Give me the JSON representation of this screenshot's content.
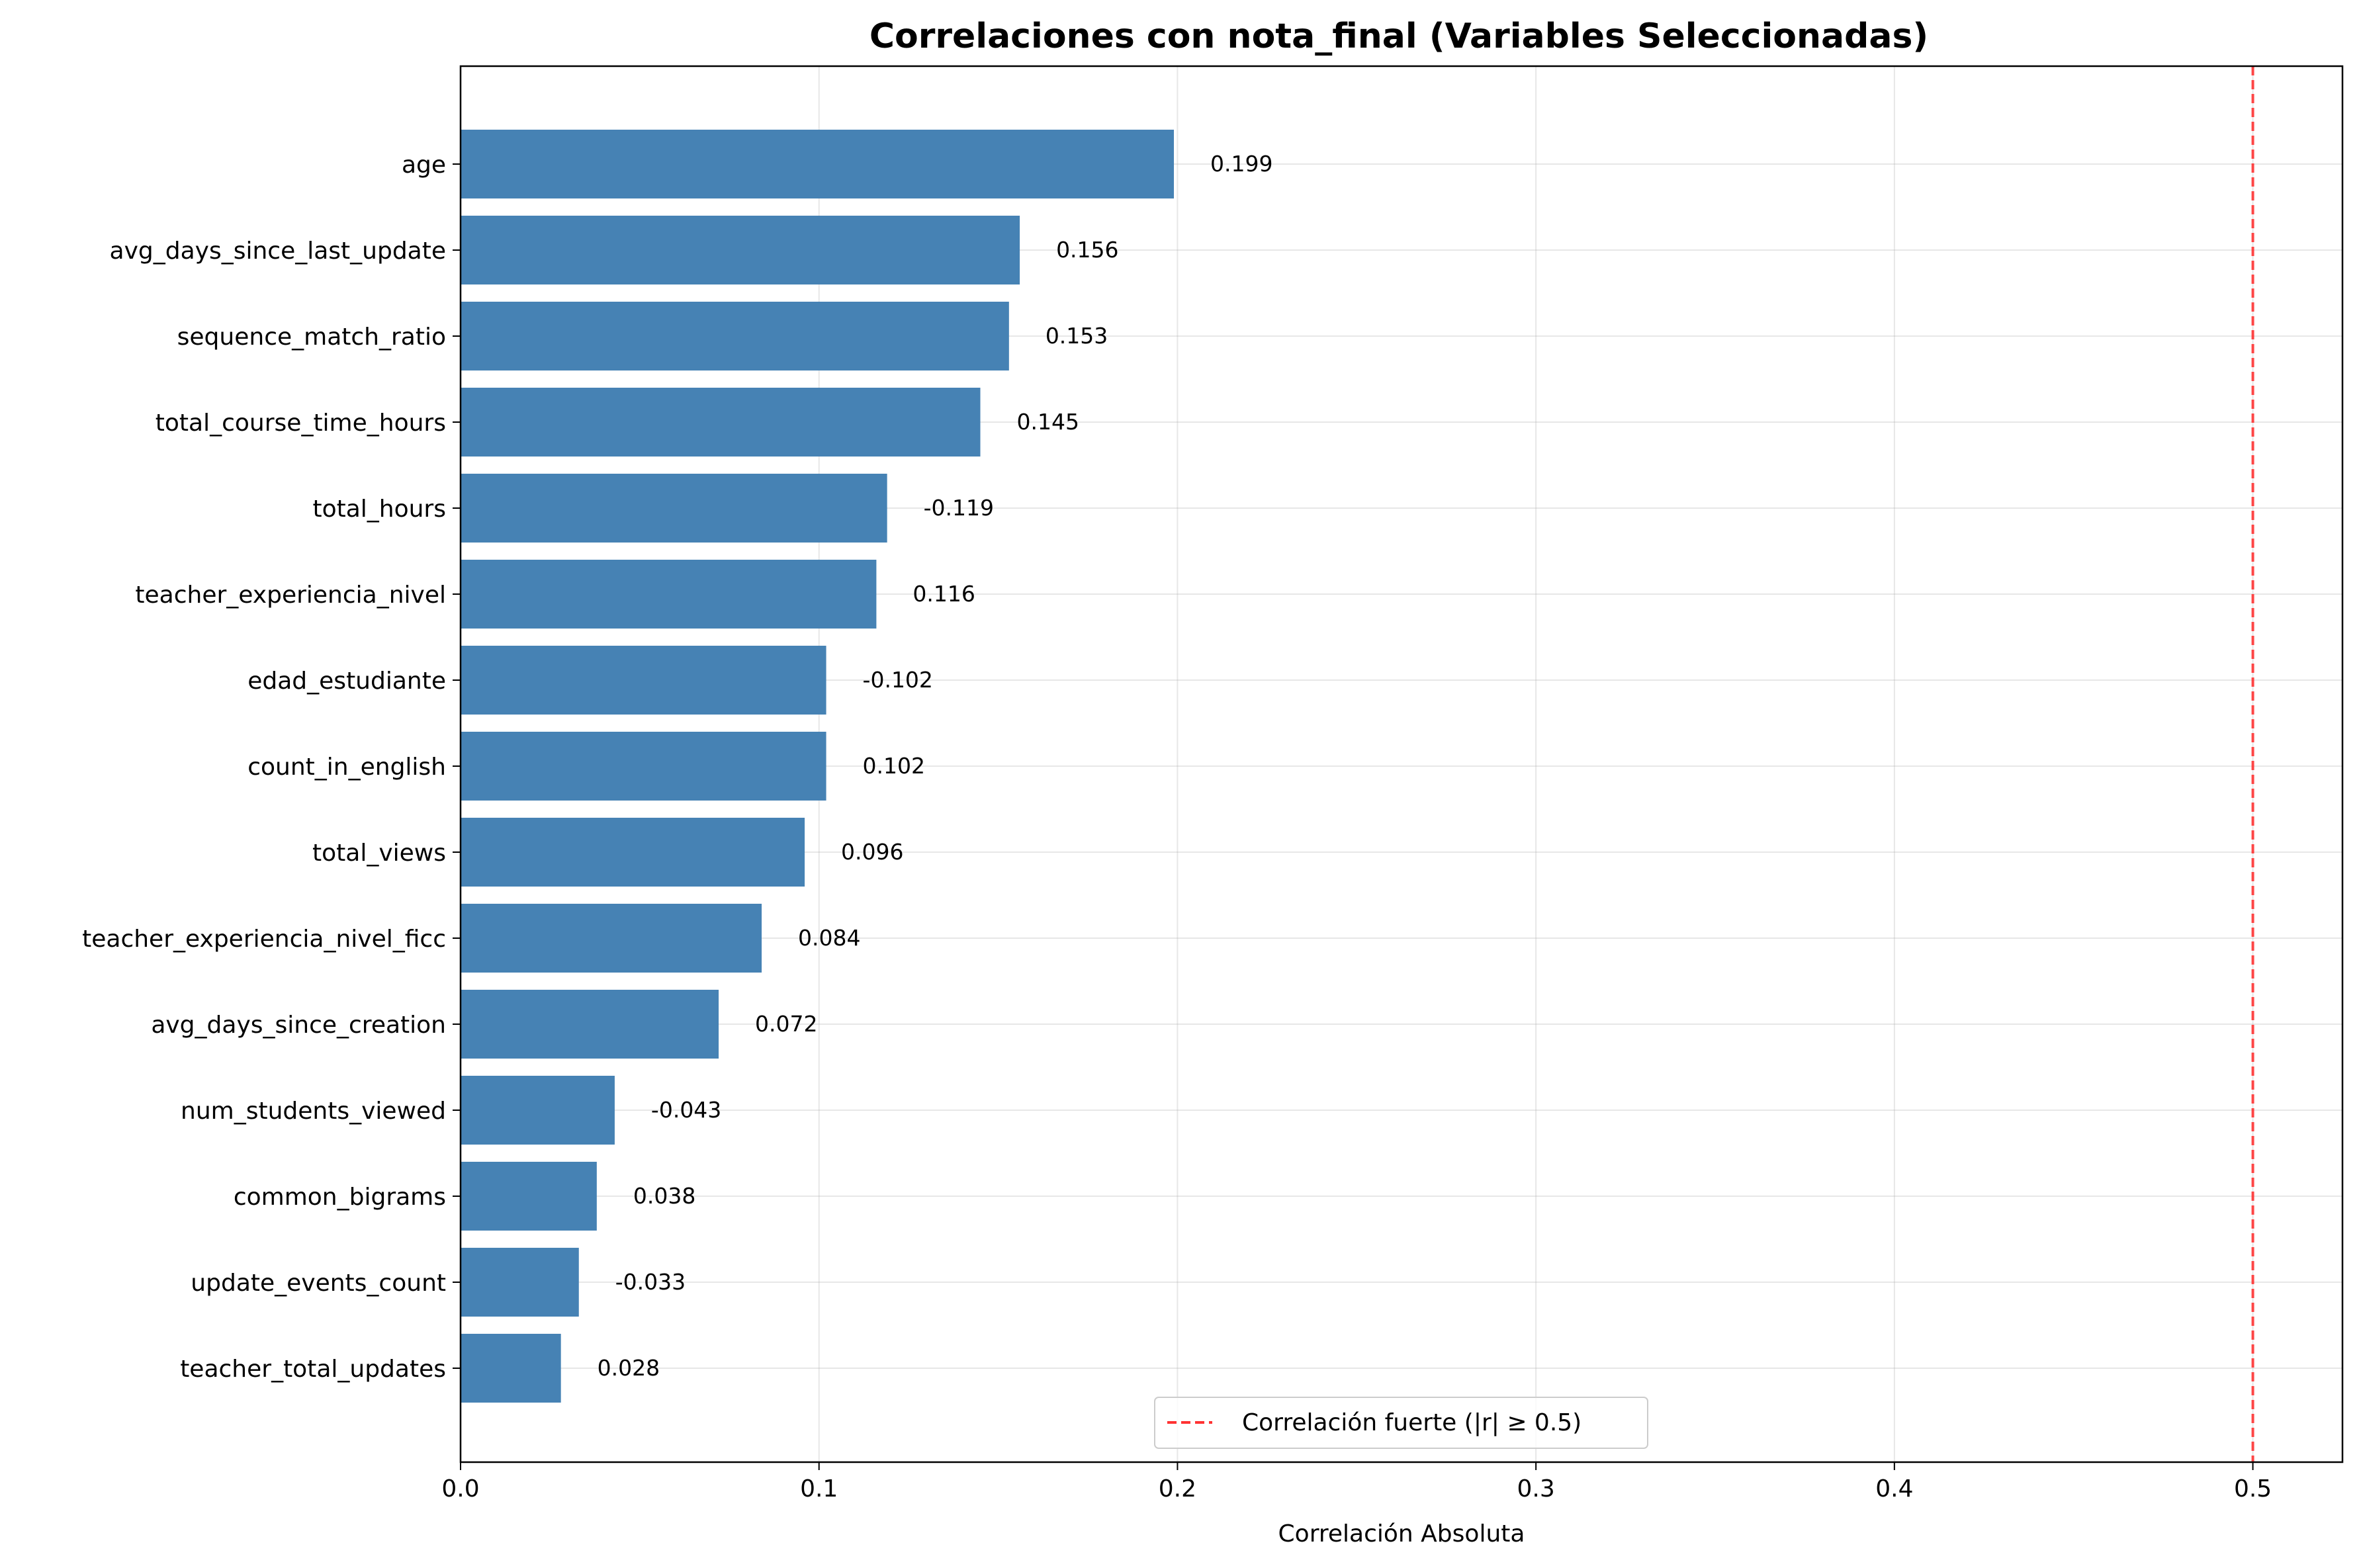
{
  "chart_data": {
    "type": "bar",
    "orientation": "horizontal",
    "title": "Correlaciones con nota_final (Variables Seleccionadas)",
    "xlabel": "Correlación Absoluta",
    "ylabel": "",
    "xlim": [
      0,
      0.525
    ],
    "xticks": [
      "0.0",
      "0.1",
      "0.2",
      "0.3",
      "0.4",
      "0.5"
    ],
    "xtick_values": [
      0,
      0.1,
      0.2,
      0.3,
      0.4,
      0.5
    ],
    "grid": true,
    "bar_color": "#4682B4",
    "categories": [
      "age",
      "avg_days_since_last_update",
      "sequence_match_ratio",
      "total_course_time_hours",
      "total_hours",
      "teacher_experiencia_nivel",
      "edad_estudiante",
      "count_in_english",
      "total_views",
      "teacher_experiencia_nivel_ficc",
      "avg_days_since_creation",
      "num_students_viewed",
      "common_bigrams",
      "update_events_count",
      "teacher_total_updates"
    ],
    "values": [
      0.199,
      0.156,
      0.153,
      0.145,
      0.119,
      0.116,
      0.102,
      0.102,
      0.096,
      0.084,
      0.072,
      0.043,
      0.038,
      0.033,
      0.028
    ],
    "data_labels": [
      "0.199",
      "0.156",
      "0.153",
      "0.145",
      "-0.119",
      "0.116",
      "-0.102",
      "0.102",
      "0.096",
      "0.084",
      "0.072",
      "-0.043",
      "0.038",
      "-0.033",
      "0.028"
    ],
    "reference_line": {
      "x": 0.5,
      "color": "#FF3333",
      "style": "dashed",
      "label": "Correlación fuerte (|r| ≥ 0.5)"
    },
    "legend": {
      "placement": "lower-center",
      "entries": [
        "Correlación fuerte (|r| ≥ 0.5)"
      ]
    }
  }
}
